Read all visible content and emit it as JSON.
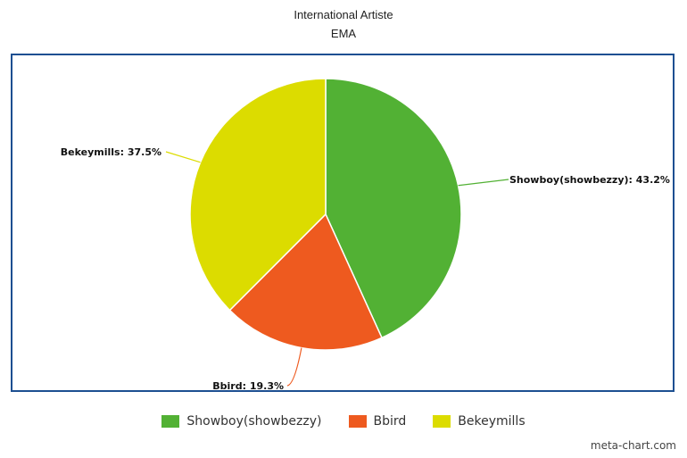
{
  "chart_data": {
    "type": "pie",
    "title": "International Artiste",
    "subtitle": "EMA",
    "slices": [
      {
        "name": "Showboy(showbezzy)",
        "value": 43.2,
        "label": "Showboy(showbezzy): 43.2%",
        "color": "#52b134"
      },
      {
        "name": "Bbird",
        "value": 19.3,
        "label": "Bbird: 19.3%",
        "color": "#ee5a1f"
      },
      {
        "name": "Bekeymills",
        "value": 37.5,
        "label": "Bekeymills: 37.5%",
        "color": "#dcdc00"
      }
    ],
    "legend_placement": "bottom"
  },
  "credit": "meta-chart.com"
}
